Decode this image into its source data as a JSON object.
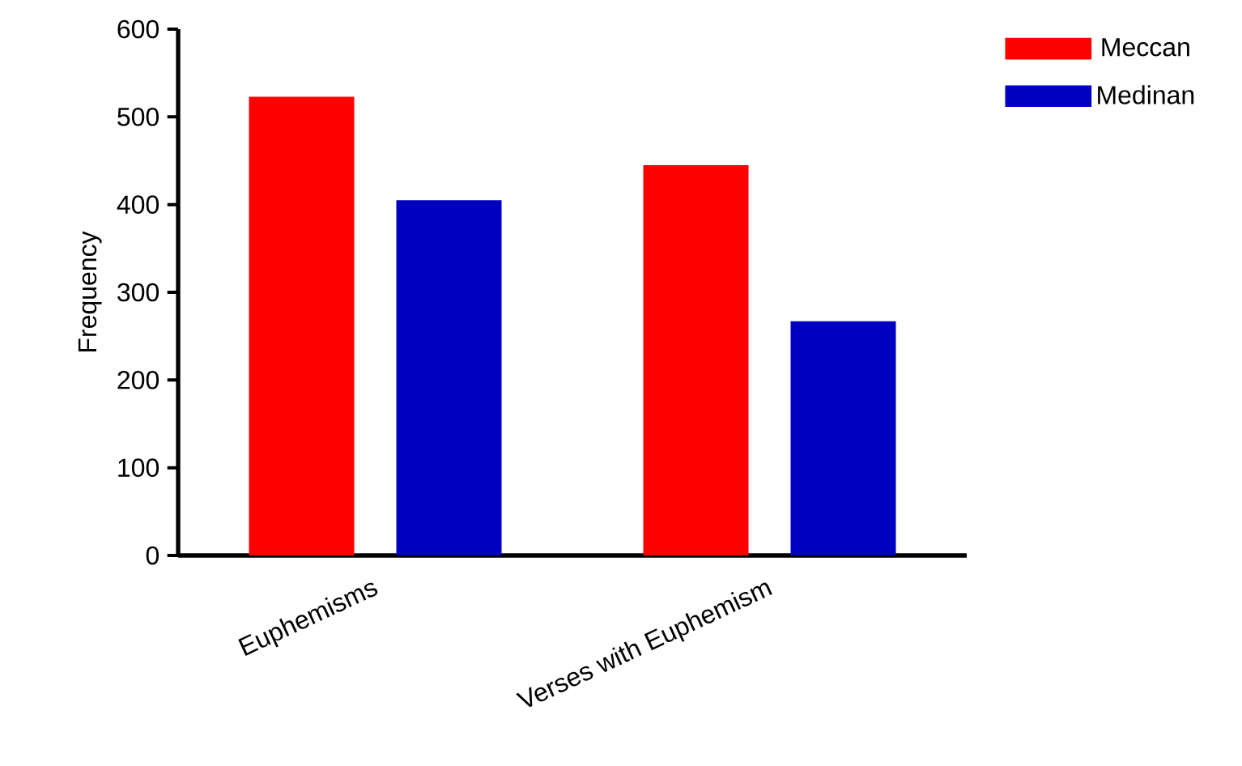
{
  "chart_data": {
    "type": "bar",
    "ylabel": "Frequency",
    "categories": [
      "Euphemisms",
      "Verses with Euphemism"
    ],
    "series": [
      {
        "name": "Meccan",
        "color": "#ff0000",
        "values": [
          523,
          445
        ]
      },
      {
        "name": "Medinan",
        "color": "#0000c0",
        "values": [
          405,
          267
        ]
      }
    ],
    "ylim": [
      0,
      600
    ],
    "yticks": [
      0,
      100,
      200,
      300,
      400,
      500,
      600
    ],
    "legend": "top right",
    "grid": false
  }
}
